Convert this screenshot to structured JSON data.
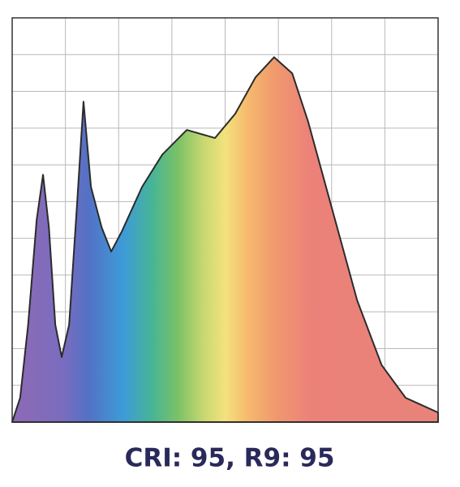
{
  "chart_data": {
    "type": "area",
    "title": "CRI: 95, R9: 95",
    "x": [
      0,
      0.15,
      0.3,
      0.46,
      0.58,
      0.69,
      0.81,
      0.93,
      1.07,
      1.22,
      1.34,
      1.48,
      1.68,
      1.86,
      2.06,
      2.44,
      2.82,
      3.28,
      3.81,
      4.19,
      4.57,
      4.92,
      5.26,
      5.56,
      6.02,
      6.48,
      6.94,
      7.39,
      8
    ],
    "values": [
      0,
      0.66,
      2.65,
      5.5,
      6.73,
      5.3,
      2.65,
      1.77,
      2.65,
      5.96,
      8.72,
      6.4,
      5.3,
      4.64,
      5.19,
      6.4,
      7.28,
      7.95,
      7.73,
      8.39,
      9.38,
      9.93,
      9.49,
      8.17,
      5.74,
      3.31,
      1.55,
      0.66,
      0.26
    ],
    "xlim": [
      0,
      8
    ],
    "ylim": [
      0,
      11
    ],
    "xticks": [
      0,
      1,
      2,
      3,
      4,
      5,
      6,
      7,
      8
    ],
    "yticks": [
      0,
      1,
      2,
      3,
      4,
      5,
      6,
      7,
      8,
      9,
      10,
      11
    ],
    "grid": true
  }
}
